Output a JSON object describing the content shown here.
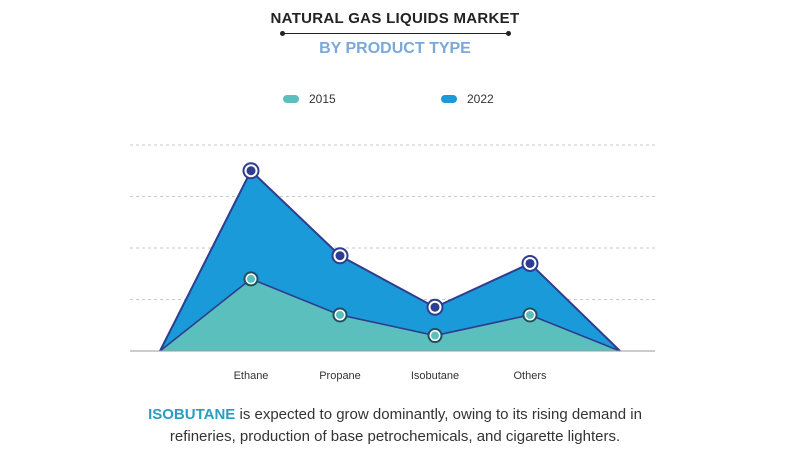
{
  "title": "NATURAL GAS LIQUIDS MARKET",
  "subtitle": "BY PRODUCT TYPE",
  "colors": {
    "series_2015": "#5bbfbd",
    "series_2022": "#1b9ad9",
    "line": "#2e3d8f",
    "grid": "#c8c8c8",
    "axis": "#999999",
    "subtitle": "#7aa9d9",
    "highlight": "#2a9dc0"
  },
  "caption": {
    "highlight": "ISOBUTANE",
    "line1_rest": " is expected to grow dominantly, owing to its rising demand in",
    "line2": "refineries, production of base petrochemicals, and cigarette lighters."
  },
  "chart_data": {
    "type": "area",
    "categories": [
      "Ethane",
      "Propane",
      "Isobutane",
      "Others"
    ],
    "series": [
      {
        "name": "2015",
        "values": [
          28,
          14,
          6,
          14
        ]
      },
      {
        "name": "2022",
        "values": [
          70,
          37,
          17,
          34
        ]
      }
    ],
    "ylim": [
      0,
      80
    ],
    "grid": true,
    "legend": "top-center"
  }
}
